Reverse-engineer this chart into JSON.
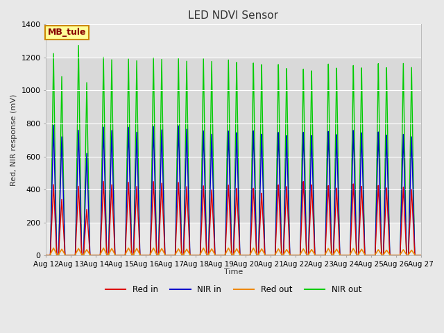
{
  "title": "LED NDVI Sensor",
  "ylabel": "Red, NIR response (mV)",
  "xlabel": "Time",
  "annotation": "MB_tule",
  "ylim": [
    0,
    1400
  ],
  "yticks": [
    0,
    200,
    400,
    600,
    800,
    1000,
    1200,
    1400
  ],
  "x_tick_labels": [
    "Aug 12",
    "Aug 13",
    "Aug 14",
    "Aug 15",
    "Aug 16",
    "Aug 17",
    "Aug 18",
    "Aug 19",
    "Aug 20",
    "Aug 21",
    "Aug 22",
    "Aug 23",
    "Aug 24",
    "Aug 25",
    "Aug 26",
    "Aug 27"
  ],
  "num_cycles": 15,
  "colors": {
    "red_in": "#dd0000",
    "nir_in": "#0000cc",
    "red_out": "#ee8800",
    "nir_out": "#00cc00"
  },
  "fig_bg_color": "#e8e8e8",
  "plot_bg_color": "#e8e8e8",
  "inner_bg_color": "#d8d8d8",
  "grid_color": "#ffffff",
  "legend_labels": [
    "Red in",
    "NIR in",
    "Red out",
    "NIR out"
  ],
  "annotation_bg": "#ffff99",
  "annotation_border": "#cc8800",
  "red_in_peaks1": [
    430,
    420,
    450,
    445,
    450,
    445,
    425,
    430,
    410,
    430,
    450,
    425,
    435,
    425,
    415
  ],
  "red_in_peaks2": [
    340,
    280,
    430,
    420,
    440,
    420,
    400,
    410,
    380,
    420,
    430,
    410,
    420,
    410,
    400
  ],
  "nir_in_peaks1": [
    790,
    760,
    780,
    780,
    785,
    790,
    760,
    760,
    760,
    750,
    750,
    755,
    760,
    750,
    735
  ],
  "nir_in_peaks2": [
    720,
    620,
    760,
    750,
    765,
    770,
    740,
    750,
    740,
    730,
    730,
    735,
    745,
    730,
    720
  ],
  "red_out_peaks1": [
    45,
    42,
    45,
    45,
    45,
    40,
    45,
    45,
    45,
    40,
    40,
    42,
    42,
    35,
    35
  ],
  "red_out_peaks2": [
    38,
    35,
    42,
    42,
    42,
    38,
    40,
    40,
    40,
    36,
    36,
    38,
    38,
    32,
    32
  ],
  "nir_out_peaks1": [
    1225,
    1275,
    1205,
    1195,
    1205,
    1200,
    1200,
    1195,
    1175,
    1165,
    1135,
    1165,
    1155,
    1165,
    1165
  ],
  "nir_out_peaks2": [
    1085,
    1050,
    1190,
    1185,
    1195,
    1185,
    1185,
    1180,
    1165,
    1140,
    1125,
    1140,
    1140,
    1140,
    1140
  ]
}
